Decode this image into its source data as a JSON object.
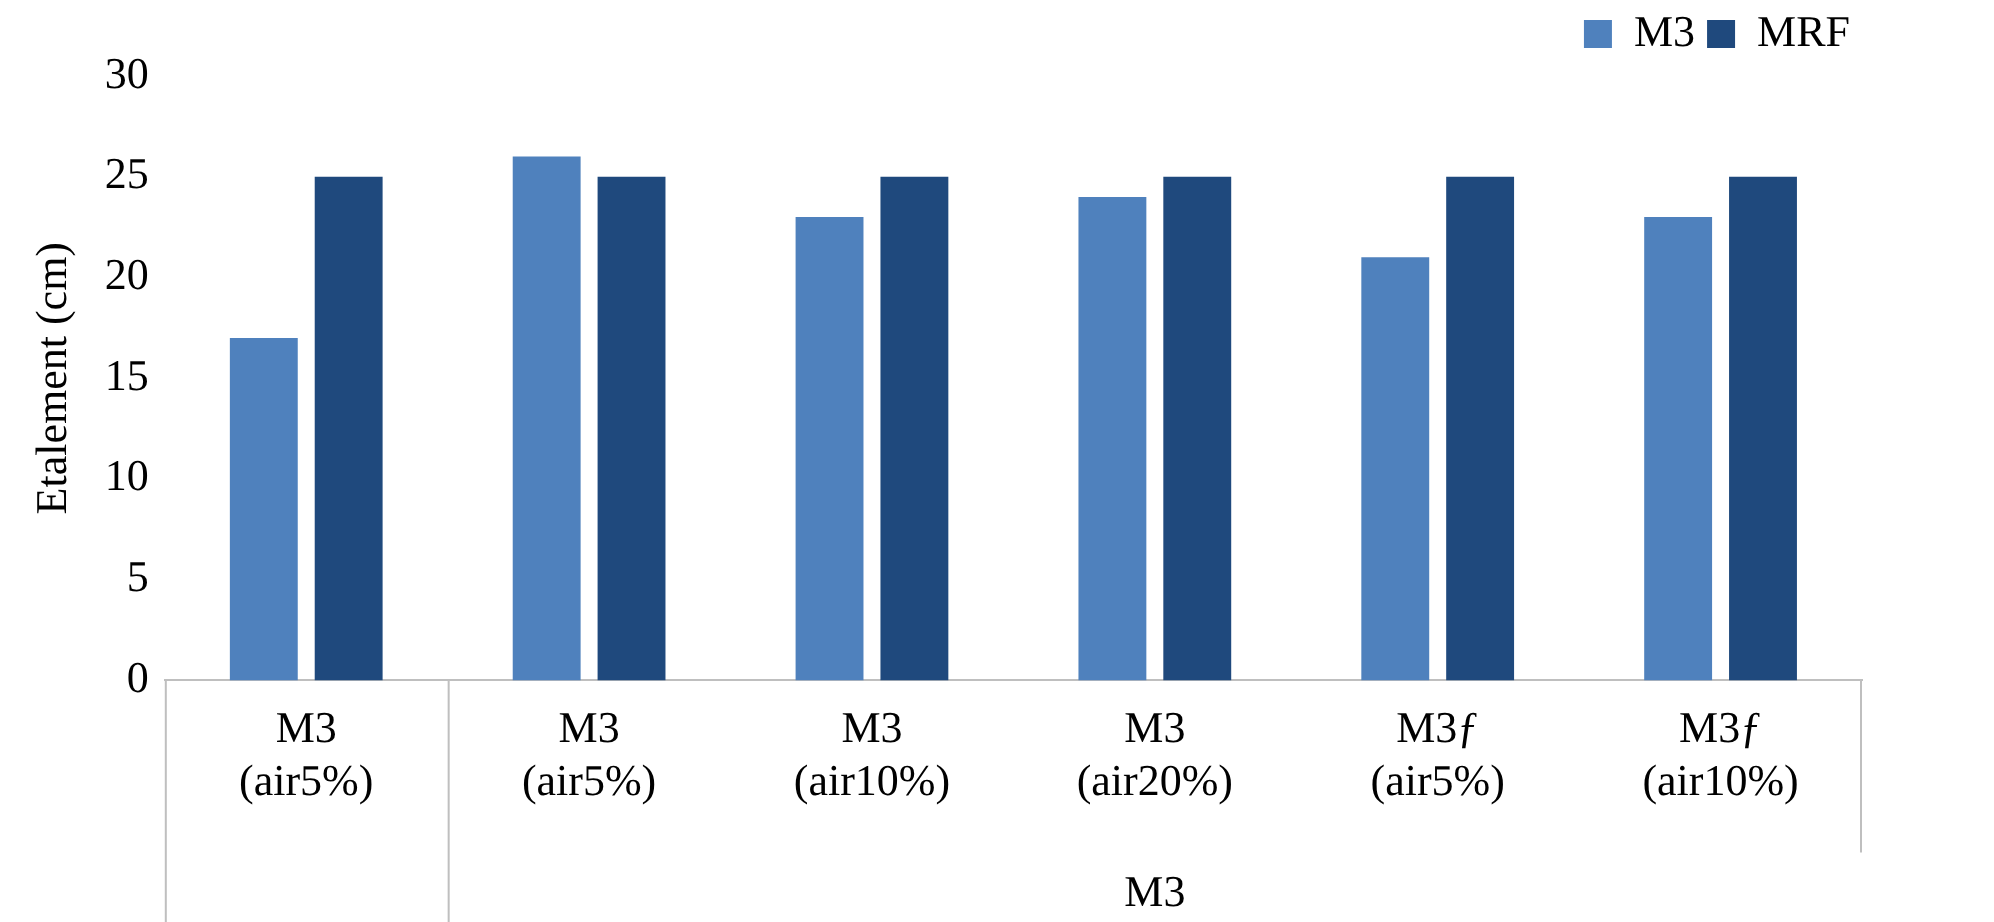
{
  "chart_data": {
    "type": "bar",
    "ylabel": "Etalement (cm)",
    "categories": [
      "M3\n(air5%)",
      "M3\n(air5%)",
      "M3\n(air10%)",
      "M3\n(air20%)",
      "M3ƒ\n(air5%)",
      "M3ƒ\n(air10%)"
    ],
    "series": [
      {
        "name": "M3",
        "color": "#4f81bd",
        "values": [
          17,
          26,
          23,
          24,
          21,
          23
        ]
      },
      {
        "name": "MRF",
        "color": "#1f497d",
        "values": [
          25,
          25,
          25,
          25,
          25,
          25
        ]
      }
    ],
    "ylim": [
      0,
      30
    ],
    "yticks": [
      0,
      5,
      10,
      15,
      20,
      25,
      30
    ],
    "grid": false,
    "legend": "top right",
    "annotations": [
      "M3"
    ]
  }
}
